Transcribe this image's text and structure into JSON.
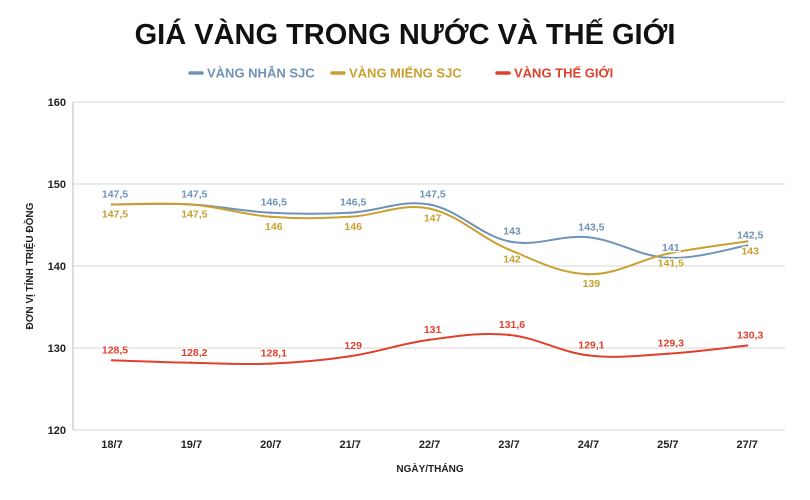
{
  "chart_data": {
    "type": "line",
    "title": "GIÁ VÀNG TRONG NƯỚC VÀ THẾ GIỚI",
    "xlabel": "NGÀY/THÁNG",
    "ylabel": "ĐƠN VỊ TÍNH TRIỆU ĐỒNG",
    "categories": [
      "18/7",
      "19/7",
      "20/7",
      "21/7",
      "22/7",
      "23/7",
      "24/7",
      "25/7",
      "27/7"
    ],
    "ylim": [
      120,
      160
    ],
    "yticks": [
      "120",
      "130",
      "140",
      "150",
      "160"
    ],
    "grid": true,
    "legend_position": "top",
    "series": [
      {
        "name": "VÀNG NHẪN SJC",
        "color": "#6f93b8",
        "values": [
          147.5,
          147.5,
          146.5,
          146.5,
          147.5,
          143,
          143.5,
          141,
          142.5
        ],
        "labels": [
          "147,5",
          "147,5",
          "146,5",
          "146,5",
          "147,5",
          "143",
          "143,5",
          "141",
          "142,5"
        ]
      },
      {
        "name": "VÀNG MIẾNG SJC",
        "color": "#c9a030",
        "values": [
          147.5,
          147.5,
          146,
          146,
          147,
          142,
          139,
          141.5,
          143
        ],
        "labels": [
          "147,5",
          "147,5",
          "146",
          "146",
          "147",
          "142",
          "139",
          "141,5",
          "143"
        ]
      },
      {
        "name": "VÀNG THẾ GIỚI",
        "color": "#e0412c",
        "values": [
          128.5,
          128.2,
          128.1,
          129,
          131,
          131.6,
          129.1,
          129.3,
          130.3
        ],
        "labels": [
          "128,5",
          "128,2",
          "128,1",
          "129",
          "131",
          "131,6",
          "129,1",
          "129,3",
          "130,3"
        ]
      }
    ]
  }
}
